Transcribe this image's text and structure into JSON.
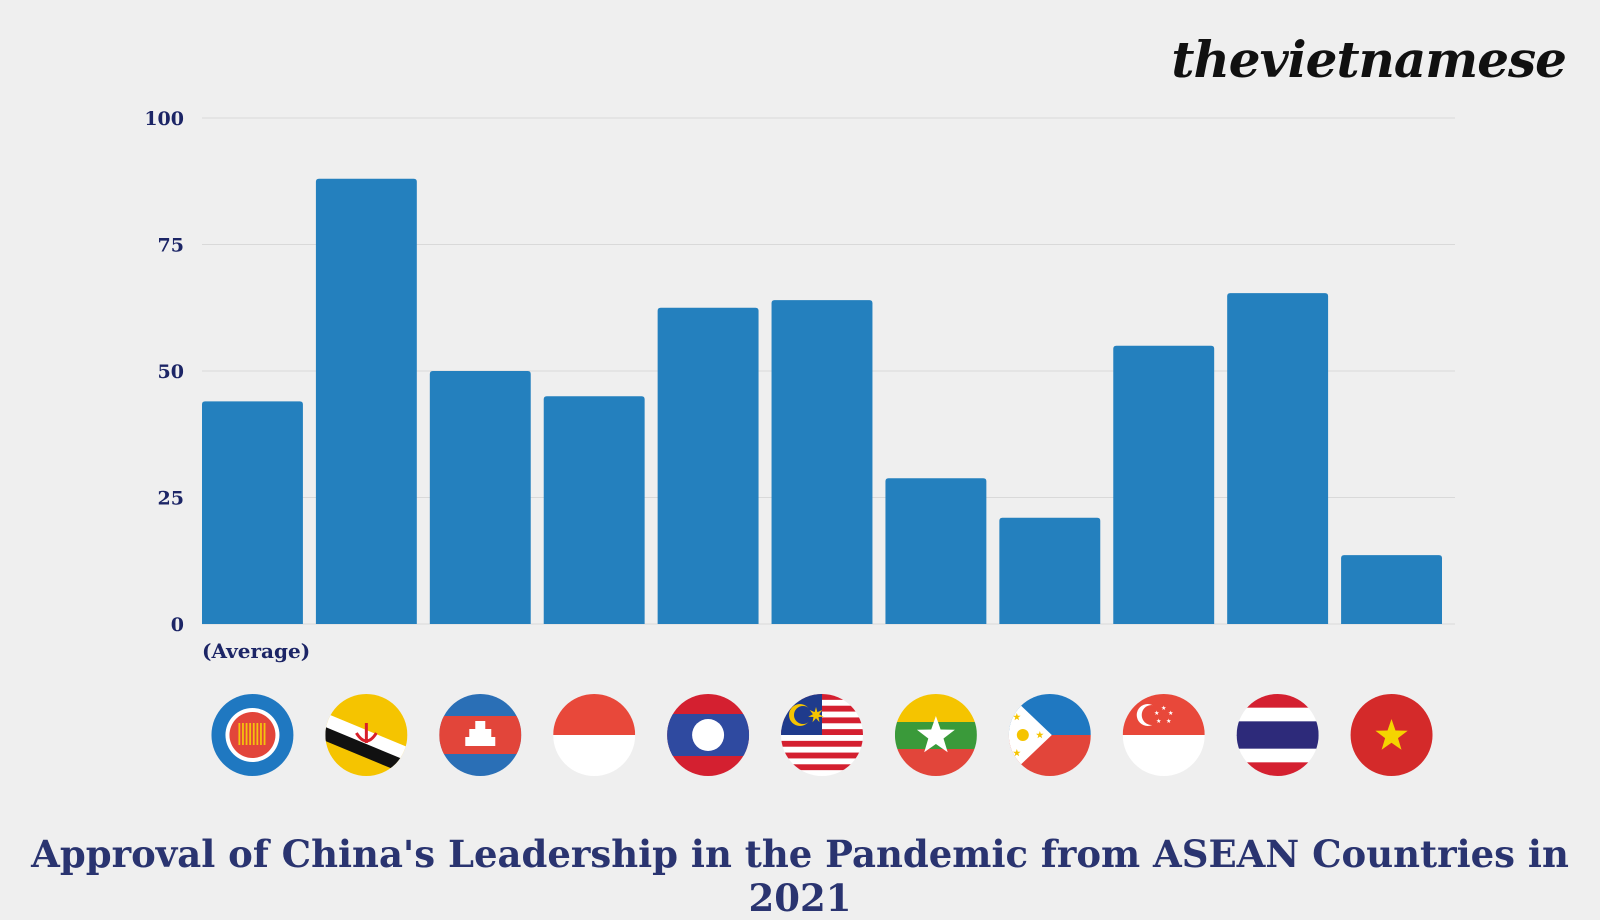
{
  "brand": "thevietnamese",
  "title": "Approval of China's Leadership in the Pandemic from ASEAN Countries in 2021",
  "colors": {
    "bar": "#2480be",
    "grid": "#d9d9d9",
    "text": "#1c2566",
    "background": "#efefef"
  },
  "chart_data": {
    "type": "bar",
    "title": "Approval of China's Leadership in the Pandemic from ASEAN Countries in 2021",
    "xlabel": "",
    "ylabel": "",
    "ylim": [
      0,
      100
    ],
    "yticks": [
      0,
      25,
      50,
      75,
      100
    ],
    "grid": true,
    "categories": [
      "(Average)",
      "",
      "",
      "",
      "",
      "",
      "",
      "",
      "",
      "",
      ""
    ],
    "flag_icons": [
      "asean-flag-icon",
      "brunei-flag-icon",
      "cambodia-flag-icon",
      "indonesia-flag-icon",
      "laos-flag-icon",
      "malaysia-flag-icon",
      "myanmar-flag-icon",
      "philippines-flag-icon",
      "singapore-flag-icon",
      "thailand-flag-icon",
      "vietnam-flag-icon"
    ],
    "values": [
      44,
      88,
      50,
      45,
      62.5,
      64,
      28.8,
      21,
      55,
      65.4,
      13.6
    ]
  }
}
